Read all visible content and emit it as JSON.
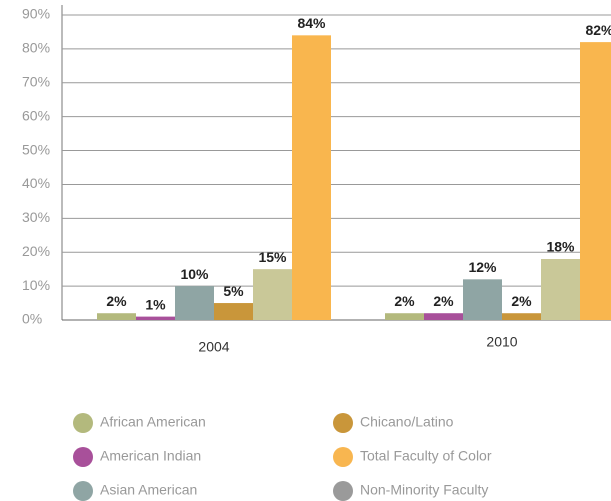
{
  "chart_data": {
    "type": "bar",
    "categories": [
      "2004",
      "2010"
    ],
    "series": [
      {
        "name": "African American",
        "color": "#b3b97d",
        "legend_color": "#b3b97d",
        "values": [
          2,
          2
        ],
        "value_labels": [
          "2%",
          "2%"
        ]
      },
      {
        "name": "American Indian",
        "color": "#a8509a",
        "legend_color": "#a8509a",
        "values": [
          1,
          2
        ],
        "value_labels": [
          "1%",
          "2%"
        ]
      },
      {
        "name": "Asian American",
        "color": "#8fa5a4",
        "legend_color": "#8fa5a4",
        "values": [
          10,
          12
        ],
        "value_labels": [
          "10%",
          "12%"
        ]
      },
      {
        "name": "Chicano/Latino",
        "color": "#c9963a",
        "legend_color": "#c9963a",
        "values": [
          5,
          2
        ],
        "value_labels": [
          "5%",
          "2%"
        ]
      },
      {
        "name": "Total Faculty of Color",
        "color": "#c9c898",
        "legend_color": "#f8b650",
        "values": [
          15,
          18
        ],
        "value_labels": [
          "15%",
          "18%"
        ]
      },
      {
        "name": "Non-Minority Faculty",
        "color": "#f9b64e",
        "legend_color": "#9a9a9a",
        "values": [
          84,
          82
        ],
        "value_labels": [
          "84%",
          "82%"
        ]
      }
    ],
    "ylim": [
      0,
      90
    ],
    "yticks": [
      {
        "value": 0,
        "label": "0%"
      },
      {
        "value": 10,
        "label": "10%"
      },
      {
        "value": 20,
        "label": "20%"
      },
      {
        "value": 30,
        "label": "30%"
      },
      {
        "value": 40,
        "label": "40%"
      },
      {
        "value": 50,
        "label": "50%"
      },
      {
        "value": 60,
        "label": "60%"
      },
      {
        "value": 70,
        "label": "70%"
      },
      {
        "value": 80,
        "label": "80%"
      },
      {
        "value": 90,
        "label": "90%"
      }
    ],
    "grid": true
  }
}
